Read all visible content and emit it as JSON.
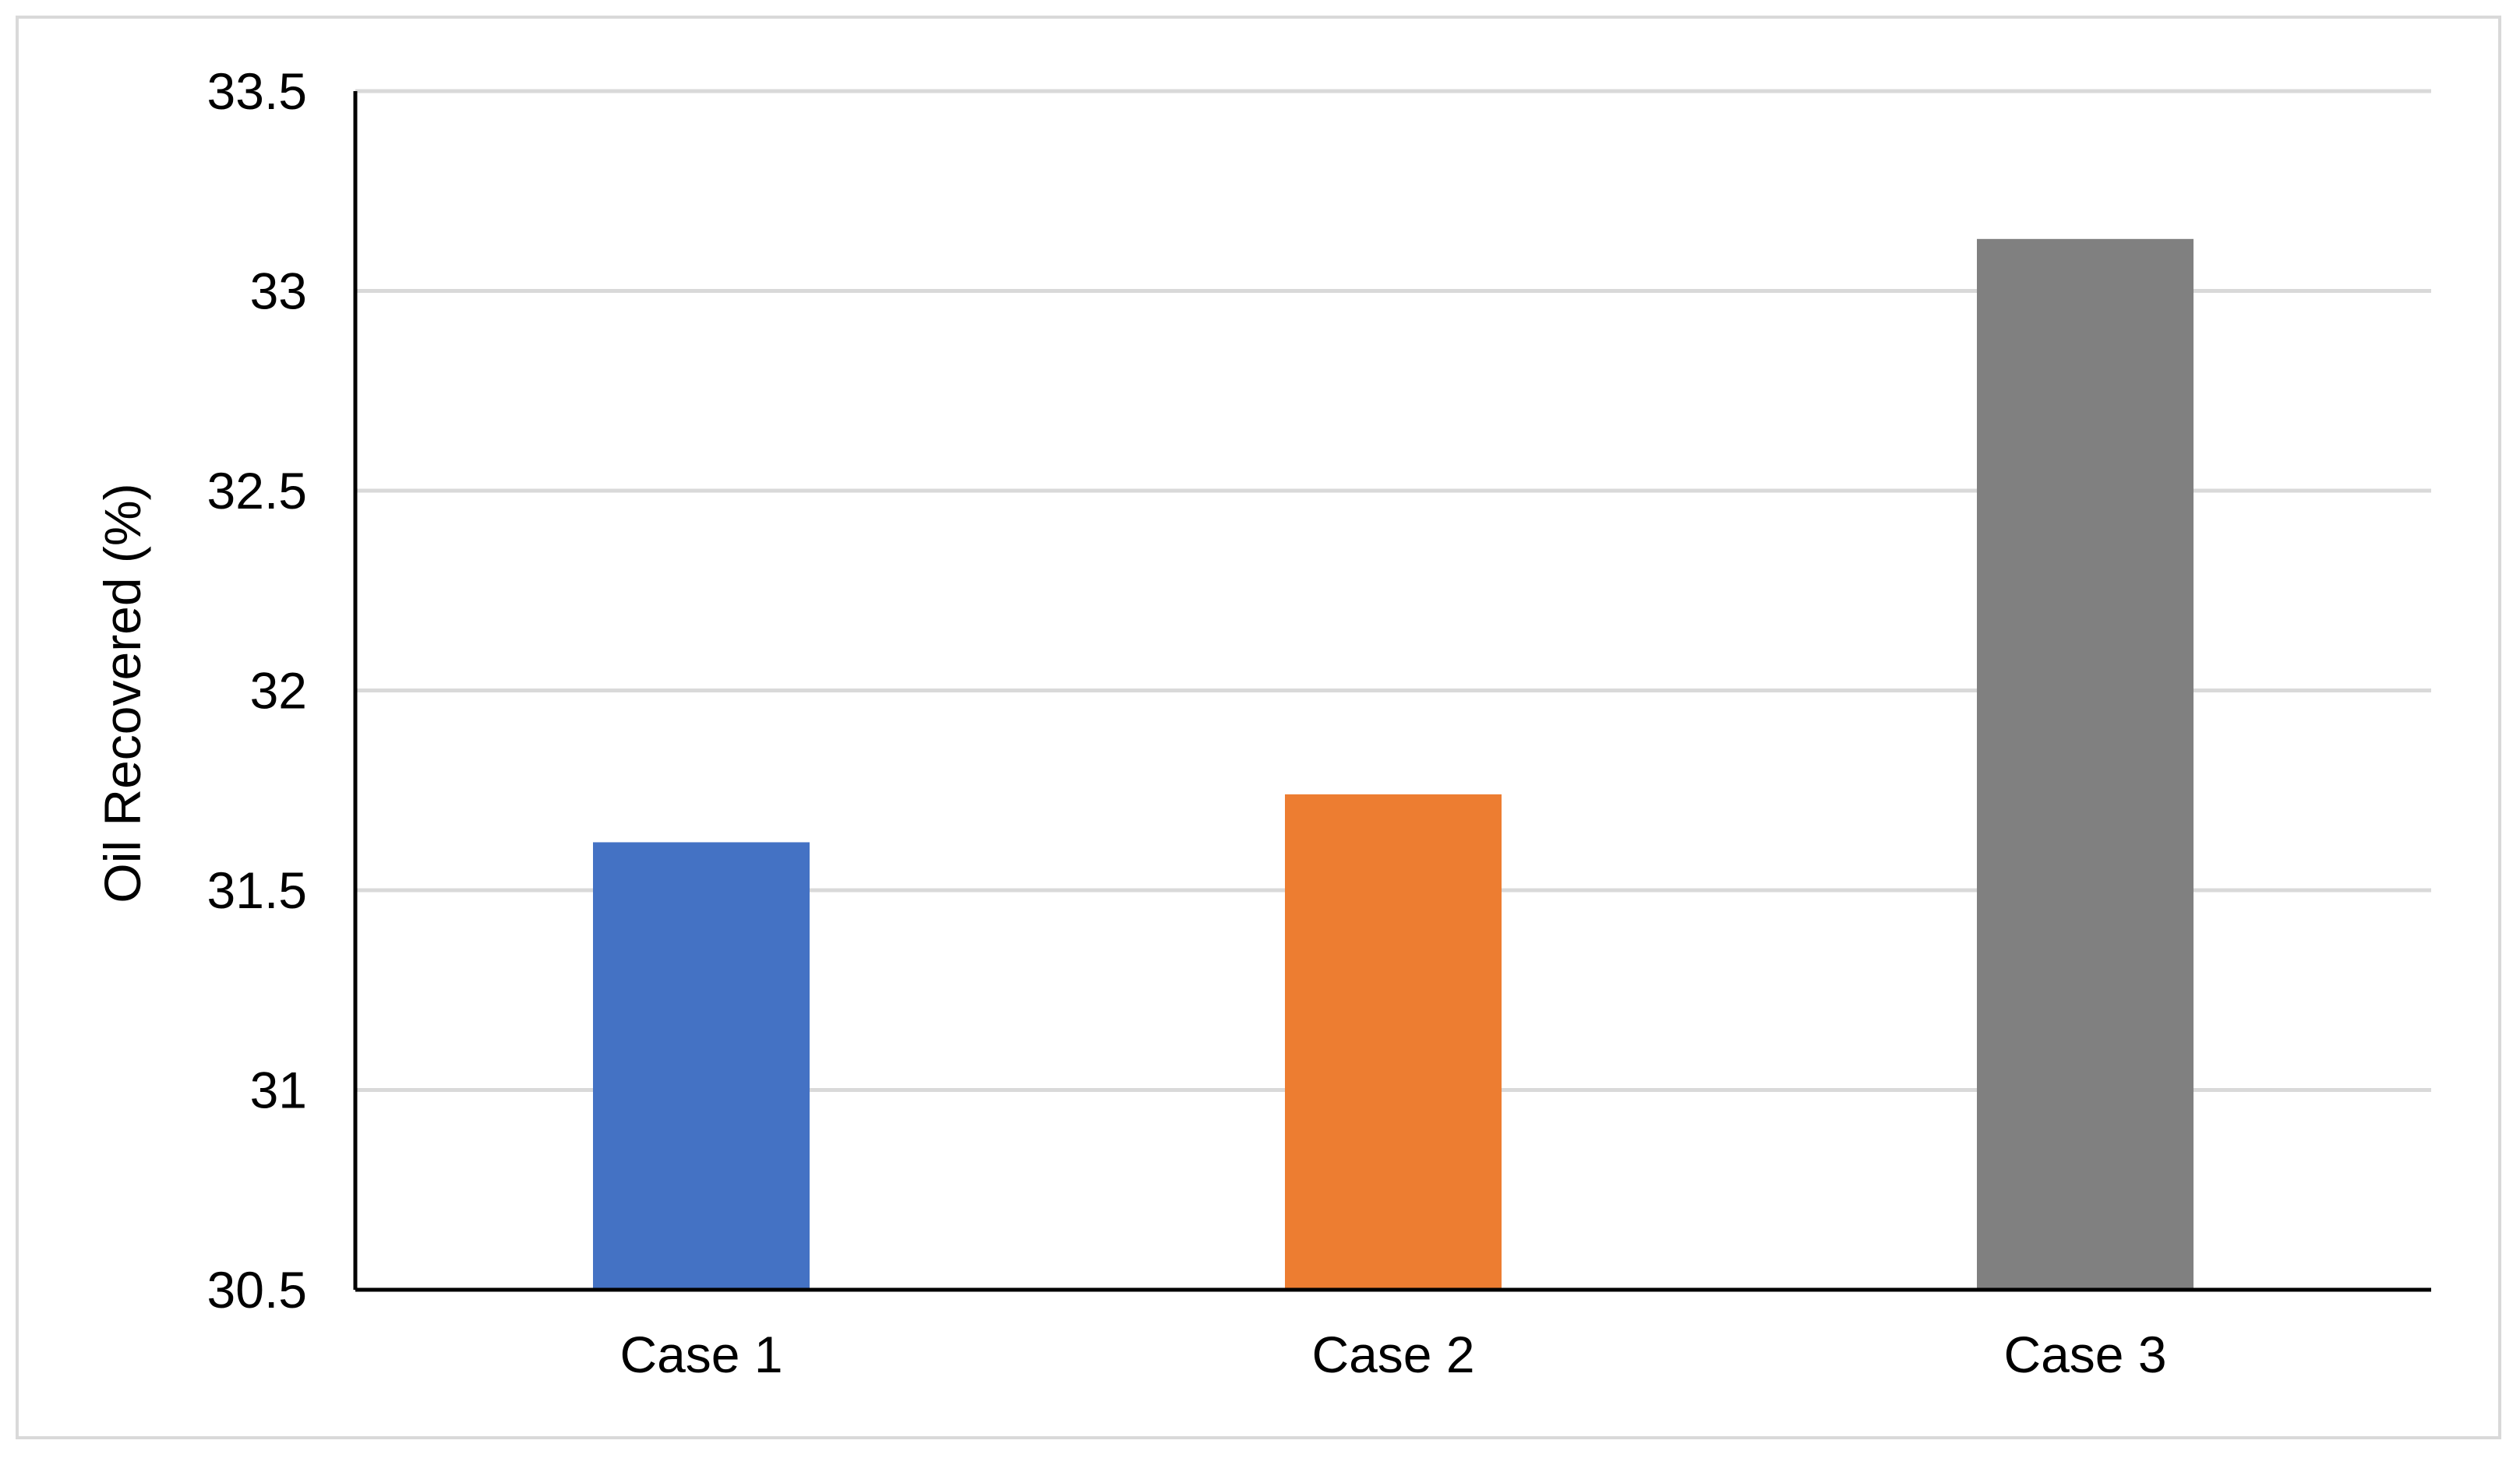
{
  "chart_data": {
    "type": "bar",
    "title": "",
    "xlabel": "",
    "ylabel": "Oil Recovered (%)",
    "categories": [
      "Case 1",
      "Case 2",
      "Case 3"
    ],
    "values": [
      31.62,
      31.74,
      33.13
    ],
    "colors": [
      "#4472c4",
      "#ed7d31",
      "#808080"
    ],
    "ylim": [
      30.5,
      33.5
    ],
    "yticks": [
      30.5,
      31,
      31.5,
      32,
      32.5,
      33,
      33.5
    ],
    "ytick_labels": [
      "30.5",
      "31",
      "31.5",
      "32",
      "32.5",
      "33",
      "33.5"
    ],
    "grid": true,
    "legend": "none",
    "gridline_color": "#d9d9d9",
    "axis_color": "#000000"
  }
}
